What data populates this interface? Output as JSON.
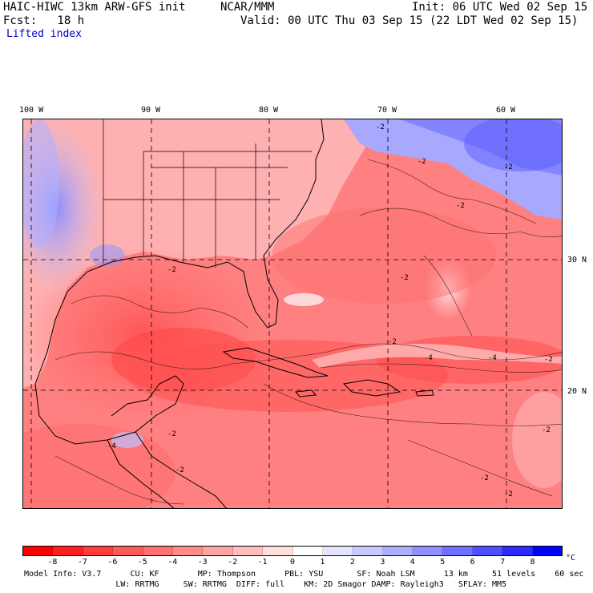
{
  "header": {
    "model_title": "HAIC-HIWC 13km ARW-GFS init",
    "org": "NCAR/MMM",
    "init_line": "Init: 06 UTC Wed 02 Sep 15",
    "fcst_line": "Fcst:   18 h",
    "valid_line": "Valid: 00 UTC Thu 03 Sep 15 (22 LDT Wed 02 Sep 15)",
    "field_name": "Lifted index"
  },
  "map": {
    "longitude_labels": [
      "100 W",
      "90 W",
      "80 W",
      "70 W",
      "60 W"
    ],
    "latitude_labels": [
      "30 N",
      "20 N"
    ],
    "contour_labels": [
      "-2",
      "-2",
      "-2",
      "-2",
      "-2",
      "-2",
      "-4",
      "-4",
      "-2",
      "-2",
      "-2",
      "-4",
      "-2",
      "-2",
      "-2",
      "-2"
    ],
    "palette": {
      "neg8": "#ff0000",
      "neg7": "#ff2626",
      "neg6": "#ff4747",
      "neg5": "#ff6666",
      "neg4": "#ff8585",
      "neg3": "#ffa3a3",
      "neg2": "#ffc2c2",
      "neg1": "#ffe0e0",
      "zero": "#ffffff",
      "pos1": "#e0e0ff",
      "pos2": "#c2c2ff",
      "pos3": "#a3a3ff",
      "pos4": "#8585ff",
      "pos5": "#6666ff",
      "pos6": "#4747ff",
      "pos7": "#2626ff",
      "pos8": "#0000ff"
    }
  },
  "colorbar": {
    "tick_labels": [
      "-8",
      "-7",
      "-6",
      "-5",
      "-4",
      "-3",
      "-2",
      "-1",
      "0",
      "1",
      "2",
      "3",
      "4",
      "5",
      "6",
      "7",
      "8"
    ],
    "unit": "°C",
    "colors": [
      "#ff0000",
      "#ff1f1f",
      "#ff3d3d",
      "#ff5a5a",
      "#ff7070",
      "#ff8a8a",
      "#ffa3a3",
      "#ffbdbd",
      "#ffdede",
      "#ffffff",
      "#e4e4ff",
      "#c8c8ff",
      "#aeaeff",
      "#9090ff",
      "#7070ff",
      "#4f4fff",
      "#2b2bff",
      "#0000ff"
    ]
  },
  "footer": {
    "line1": "Model Info: V3.7      CU: KF        MP: Thompson      PBL: YSU       SF: Noah LSM      13 km     51 levels    60 sec",
    "line2": "                   LW: RRTMG     SW: RRTMG  DIFF: full    KM: 2D Smagor DAMP: Rayleigh3   SFLAY: MM5"
  }
}
